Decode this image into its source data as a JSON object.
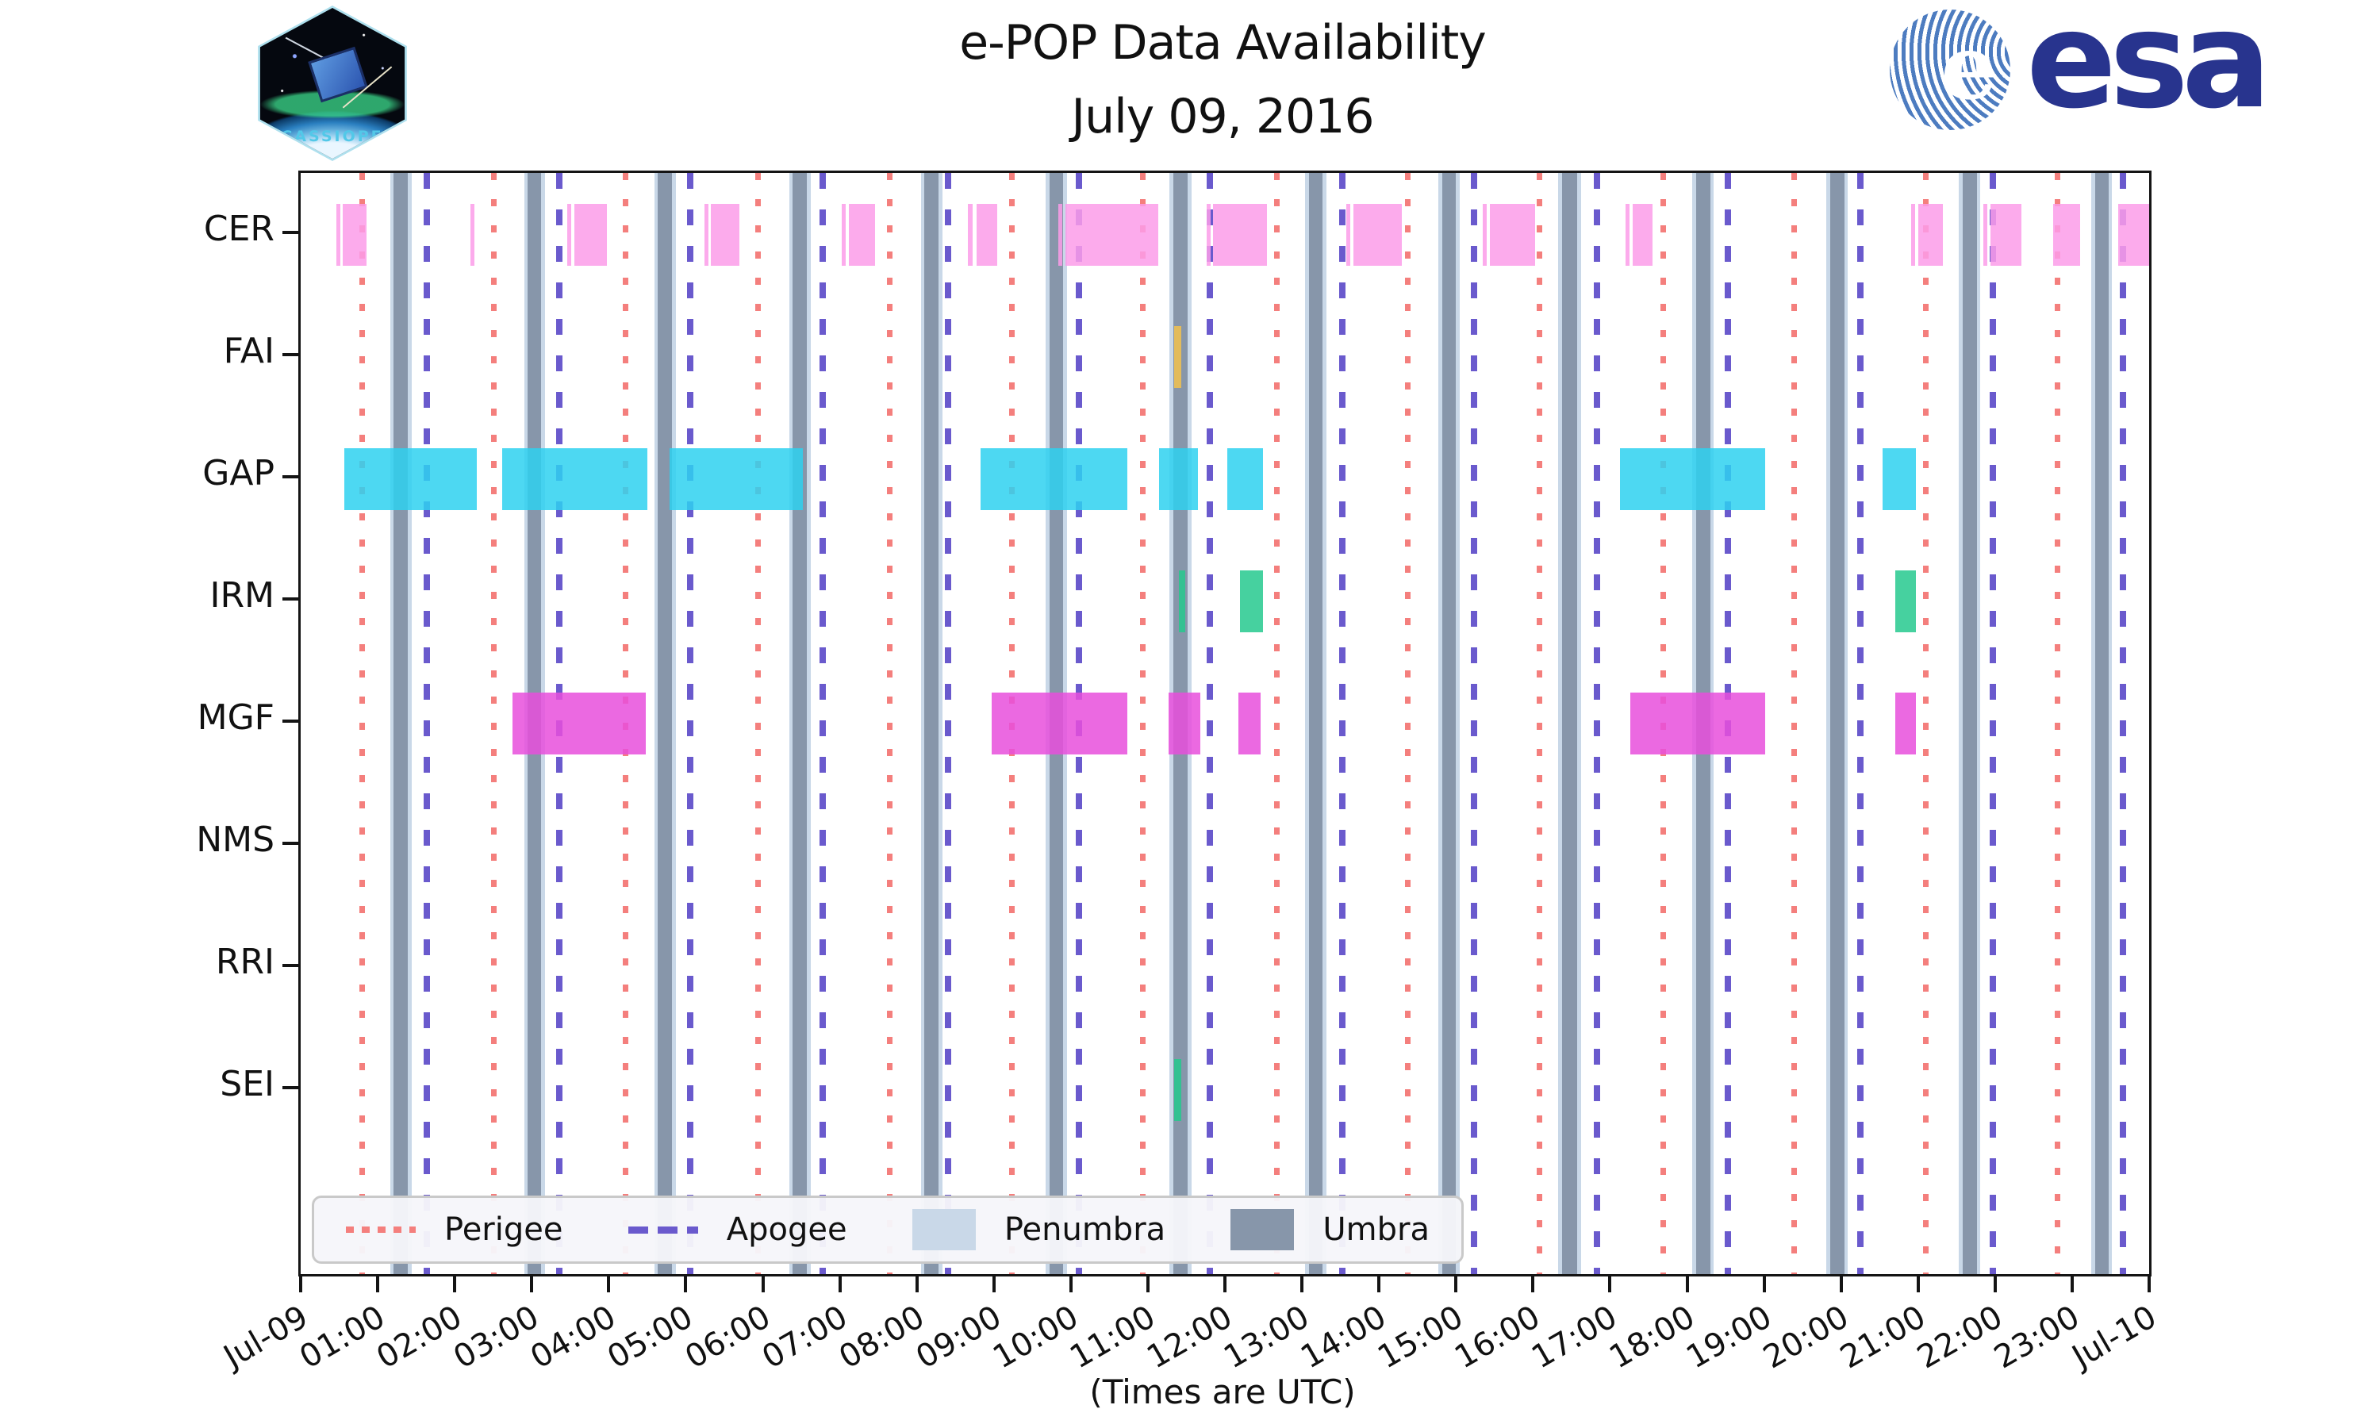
{
  "header": {
    "title_line1": "e-POP Data Availability",
    "title_line2": "July 09, 2016",
    "cassiope_patch_label": "CASSIOPE",
    "esa_wordmark": "esa",
    "esa_e": "e"
  },
  "axes": {
    "x_label": "(Times are UTC)",
    "x_tick_labels": [
      "Jul-09",
      "01:00",
      "02:00",
      "03:00",
      "04:00",
      "05:00",
      "06:00",
      "07:00",
      "08:00",
      "09:00",
      "10:00",
      "11:00",
      "12:00",
      "13:00",
      "14:00",
      "15:00",
      "16:00",
      "17:00",
      "18:00",
      "19:00",
      "20:00",
      "21:00",
      "22:00",
      "23:00",
      "Jul-10"
    ],
    "y_labels": [
      "CER",
      "FAI",
      "GAP",
      "IRM",
      "MGF",
      "NMS",
      "RRI",
      "SEI"
    ]
  },
  "legend": {
    "items": [
      {
        "label": "Perigee",
        "style": "dotted",
        "color": "#f47f7d"
      },
      {
        "label": "Apogee",
        "style": "dashed",
        "color": "#6a5acd"
      },
      {
        "label": "Penumbra",
        "style": "patch",
        "color": "#c9d8e8"
      },
      {
        "label": "Umbra",
        "style": "patch",
        "color": "#8796aa"
      }
    ]
  },
  "chart_data": {
    "type": "timeline",
    "title": "e-POP Data Availability",
    "subtitle": "July 09, 2016",
    "x_axis": {
      "unit": "hours UTC",
      "start": 0,
      "end": 24,
      "tick_interval": 1
    },
    "y_categories": [
      "CER",
      "FAI",
      "GAP",
      "IRM",
      "MGF",
      "NMS",
      "RRI",
      "SEI"
    ],
    "series": [
      {
        "name": "CER",
        "color": "#fc9ce9",
        "segments": [
          [
            0.46,
            0.51
          ],
          [
            0.55,
            0.86
          ],
          [
            2.2,
            2.25
          ],
          [
            3.46,
            3.51
          ],
          [
            3.55,
            3.98
          ],
          [
            5.24,
            5.29
          ],
          [
            5.33,
            5.7
          ],
          [
            7.03,
            7.08
          ],
          [
            7.12,
            7.46
          ],
          [
            8.66,
            8.72
          ],
          [
            8.78,
            9.04
          ],
          [
            9.84,
            9.89
          ],
          [
            9.93,
            11.13
          ],
          [
            11.76,
            11.81
          ],
          [
            11.85,
            12.55
          ],
          [
            13.58,
            13.63
          ],
          [
            13.67,
            14.3
          ],
          [
            15.35,
            15.4
          ],
          [
            15.44,
            16.03
          ],
          [
            17.2,
            17.25
          ],
          [
            17.29,
            17.55
          ],
          [
            20.91,
            20.96
          ],
          [
            21.0,
            21.32
          ],
          [
            21.85,
            21.9
          ],
          [
            21.94,
            22.34
          ],
          [
            22.75,
            23.1
          ],
          [
            23.6,
            24.0
          ]
        ]
      },
      {
        "name": "FAI",
        "color": "#f2c24f",
        "segments": [
          [
            11.34,
            11.43
          ]
        ]
      },
      {
        "name": "GAP",
        "color": "#2ed1f0",
        "segments": [
          [
            0.57,
            2.29
          ],
          [
            2.62,
            4.5
          ],
          [
            4.79,
            6.52
          ],
          [
            8.83,
            10.73
          ],
          [
            11.15,
            11.65
          ],
          [
            12.03,
            12.49
          ],
          [
            17.13,
            19.01
          ],
          [
            20.54,
            20.97
          ]
        ]
      },
      {
        "name": "IRM",
        "color": "#26c98e",
        "segments": [
          [
            11.4,
            11.48
          ],
          [
            12.2,
            12.49
          ],
          [
            20.7,
            20.97
          ]
        ]
      },
      {
        "name": "MGF",
        "color": "#e84fdc",
        "segments": [
          [
            2.75,
            4.48
          ],
          [
            8.97,
            10.73
          ],
          [
            11.27,
            11.68
          ],
          [
            12.17,
            12.46
          ],
          [
            17.26,
            19.01
          ],
          [
            20.7,
            20.97
          ]
        ]
      },
      {
        "name": "NMS",
        "color": "#cccccc",
        "segments": []
      },
      {
        "name": "RRI",
        "color": "#cccccc",
        "segments": []
      },
      {
        "name": "SEI",
        "color": "#26c98e",
        "segments": [
          [
            11.34,
            11.43
          ]
        ]
      }
    ],
    "perigee_times": [
      0.79,
      2.5,
      4.21,
      5.93,
      7.64,
      9.23,
      10.93,
      12.67,
      14.37,
      16.08,
      17.69,
      19.39,
      21.1,
      22.81
    ],
    "apogee_times": [
      1.64,
      3.36,
      5.06,
      6.78,
      8.4,
      10.1,
      11.8,
      13.52,
      15.23,
      16.83,
      18.53,
      20.25,
      21.97,
      23.66
    ],
    "umbra_intervals": [
      [
        1.21,
        1.39
      ],
      [
        2.95,
        3.12
      ],
      [
        4.64,
        4.82
      ],
      [
        6.39,
        6.57
      ],
      [
        8.1,
        8.28
      ],
      [
        9.72,
        9.9
      ],
      [
        11.33,
        11.52
      ],
      [
        13.09,
        13.27
      ],
      [
        14.82,
        15.0
      ],
      [
        16.38,
        16.57
      ],
      [
        18.12,
        18.3
      ],
      [
        19.86,
        20.04
      ],
      [
        21.58,
        21.76
      ],
      [
        23.3,
        23.47
      ]
    ],
    "penumbra_pad_hours": 0.05,
    "colors": {
      "perigee": "#f47f7d",
      "apogee": "#6a5acd",
      "umbra": "#8796aa",
      "penumbra": "#c9d8e8",
      "axis": "#141414"
    },
    "grid": false,
    "legend_position": "bottom-left"
  }
}
